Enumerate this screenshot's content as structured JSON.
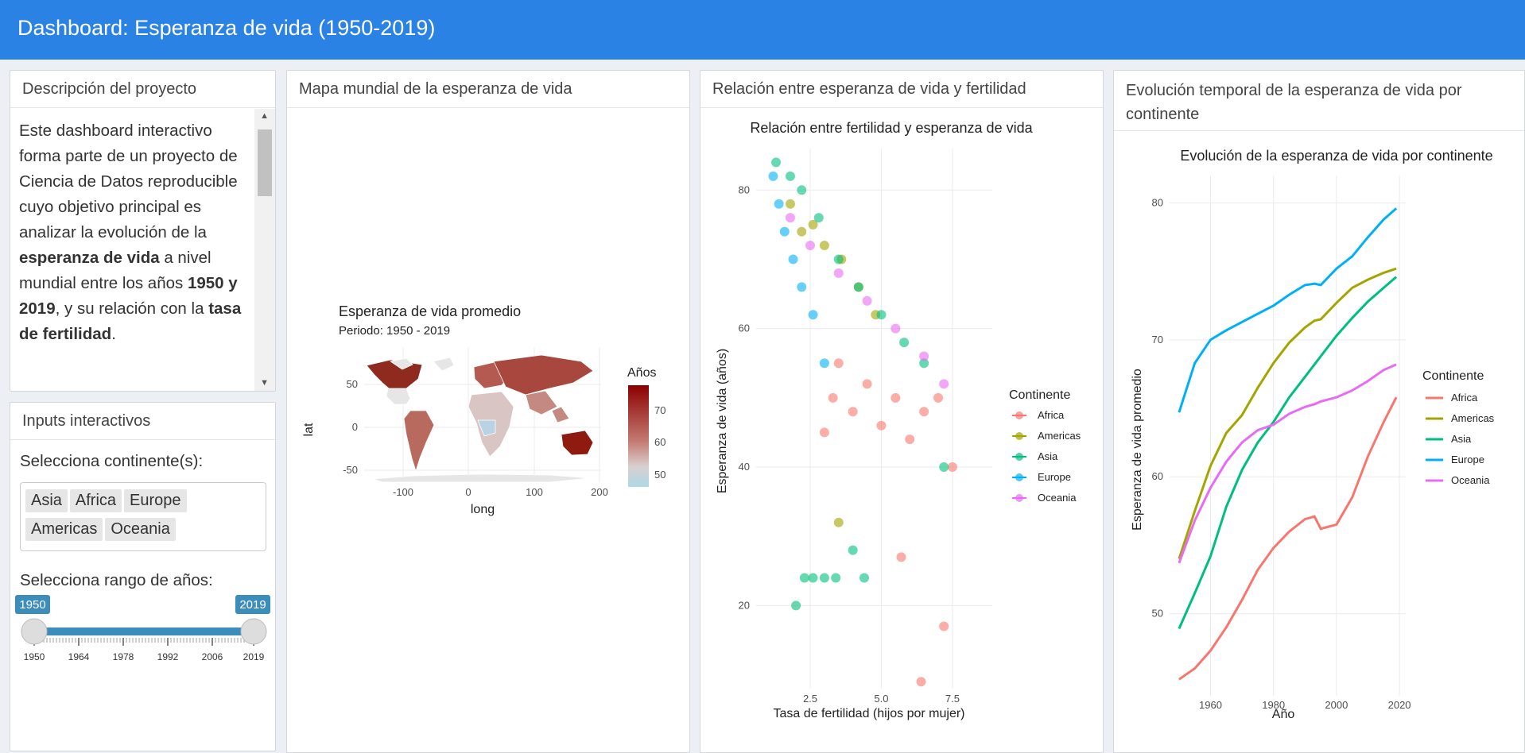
{
  "header": {
    "title": "Dashboard: Esperanza de vida (1950-2019)"
  },
  "description": {
    "title": "Descripción del proyecto",
    "p1": "Este dashboard interactivo forma parte de un proyecto de Ciencia de Datos reproducible cuyo objetivo principal es analizar la evolución de la ",
    "b1": "esperanza de vida",
    "p2": " a nivel mundial entre los años ",
    "b2": "1950 y 2019",
    "p3": ", y su relación con la ",
    "b3": "tasa de fertilidad",
    "p4": "."
  },
  "inputs": {
    "title": "Inputs interactivos",
    "continent_label": "Selecciona continente(s):",
    "continents": [
      "Asia",
      "Africa",
      "Europe",
      "Americas",
      "Oceania"
    ],
    "year_label": "Selecciona rango de años:",
    "year_min": 1950,
    "year_max": 2019,
    "selected_from": "1950",
    "selected_to": "2019",
    "ticks": [
      "1950",
      "1964",
      "1978",
      "1992",
      "2006",
      "2019"
    ]
  },
  "map_panel": {
    "title": "Mapa mundial de la esperanza de vida",
    "chart_title": "Esperanza de vida promedio",
    "subtitle": "Periodo: 1950 - 2019",
    "xlabel": "long",
    "ylabel": "lat",
    "x_ticks": [
      "-100",
      "0",
      "100",
      "200"
    ],
    "y_ticks": [
      "50",
      "0",
      "-50"
    ],
    "legend_title": "Años",
    "legend_ticks": [
      "70",
      "60",
      "50"
    ]
  },
  "scatter_panel": {
    "title": "Relación entre esperanza de vida y fertilidad",
    "chart_title": "Relación entre fertilidad y esperanza de vida",
    "xlabel": "Tasa de fertilidad (hijos por mujer)",
    "ylabel": "Esperanza de vida (años)",
    "x_ticks": [
      "2.5",
      "5.0",
      "7.5"
    ],
    "y_ticks": [
      "80",
      "60",
      "40",
      "20"
    ],
    "legend_title": "Continente"
  },
  "line_panel": {
    "title": "Evolución temporal de la esperanza de vida por continente",
    "chart_title": "Evolución de la esperanza de vida por continente",
    "xlabel": "Año",
    "ylabel": "Esperanza de vida promedio",
    "legend_title": "Continente"
  },
  "colors": {
    "Africa": "#F8766D",
    "Americas": "#A3A500",
    "Asia": "#00BF7D",
    "Europe": "#00B0F6",
    "Oceania": "#E76BF3"
  },
  "chart_data": [
    {
      "type": "scatter",
      "title": "Relación entre fertilidad y esperanza de vida",
      "xlabel": "Tasa de fertilidad (hijos por mujer)",
      "ylabel": "Esperanza de vida (años)",
      "xlim": [
        0.6,
        8.9
      ],
      "ylim": [
        8,
        86
      ],
      "legend": "right",
      "series": [
        {
          "name": "Africa",
          "x": [
            3.0,
            3.3,
            3.5,
            4.0,
            4.5,
            5.0,
            5.5,
            6.0,
            6.5,
            7.0,
            7.5,
            5.7,
            7.2,
            6.4
          ],
          "y": [
            45,
            50,
            55,
            48,
            52,
            46,
            50,
            44,
            48,
            50,
            40,
            27,
            17,
            9
          ]
        },
        {
          "name": "Americas",
          "x": [
            1.8,
            2.2,
            2.6,
            3.0,
            3.6,
            4.2,
            4.8,
            3.5
          ],
          "y": [
            78,
            74,
            75,
            72,
            70,
            66,
            62,
            32
          ]
        },
        {
          "name": "Asia",
          "x": [
            1.3,
            1.8,
            2.2,
            2.8,
            3.5,
            4.2,
            5.0,
            5.8,
            6.5,
            7.2,
            2.0,
            2.3,
            2.6,
            3.0,
            3.4,
            4.0,
            4.4
          ],
          "y": [
            84,
            82,
            80,
            76,
            70,
            66,
            62,
            58,
            55,
            40,
            20,
            24,
            24,
            24,
            24,
            28,
            24
          ]
        },
        {
          "name": "Europe",
          "x": [
            1.2,
            1.4,
            1.6,
            1.9,
            2.2,
            2.6,
            3.0
          ],
          "y": [
            82,
            78,
            74,
            70,
            66,
            62,
            55
          ]
        },
        {
          "name": "Oceania",
          "x": [
            1.8,
            2.5,
            3.5,
            4.5,
            5.5,
            6.5,
            7.2
          ],
          "y": [
            76,
            72,
            68,
            64,
            60,
            56,
            52
          ]
        }
      ]
    },
    {
      "type": "line",
      "title": "Evolución de la esperanza de vida por continente",
      "xlabel": "Año",
      "ylabel": "Esperanza de vida promedio",
      "x_ticks": [
        1960,
        1980,
        2000,
        2020
      ],
      "y_ticks": [
        50,
        60,
        70,
        80
      ],
      "xlim": [
        1947,
        2022
      ],
      "ylim": [
        44,
        82
      ],
      "legend": "right",
      "x": [
        1950,
        1955,
        1960,
        1965,
        1970,
        1975,
        1980,
        1985,
        1990,
        1993,
        1995,
        2000,
        2005,
        2010,
        2015,
        2019
      ],
      "series": [
        {
          "name": "Africa",
          "values": [
            45.2,
            46.0,
            47.3,
            49.0,
            51.0,
            53.2,
            54.8,
            56.0,
            56.9,
            57.1,
            56.2,
            56.5,
            58.5,
            61.5,
            64.0,
            65.8
          ]
        },
        {
          "name": "Americas",
          "values": [
            54.0,
            57.5,
            60.8,
            63.2,
            64.5,
            66.5,
            68.3,
            69.8,
            70.9,
            71.4,
            71.5,
            72.7,
            73.8,
            74.4,
            74.9,
            75.2
          ]
        },
        {
          "name": "Asia",
          "values": [
            48.9,
            51.5,
            54.2,
            57.8,
            60.5,
            62.5,
            64.0,
            65.8,
            67.3,
            68.2,
            68.8,
            70.3,
            71.6,
            72.8,
            73.8,
            74.6
          ]
        },
        {
          "name": "Europe",
          "values": [
            64.7,
            68.3,
            70.0,
            70.7,
            71.3,
            71.9,
            72.5,
            73.3,
            74.0,
            74.1,
            74.0,
            75.2,
            76.1,
            77.5,
            78.8,
            79.6
          ]
        },
        {
          "name": "Oceania",
          "values": [
            53.7,
            56.8,
            59.2,
            61.1,
            62.5,
            63.4,
            63.8,
            64.6,
            65.1,
            65.3,
            65.5,
            65.8,
            66.3,
            67.0,
            67.8,
            68.2
          ]
        }
      ]
    }
  ]
}
